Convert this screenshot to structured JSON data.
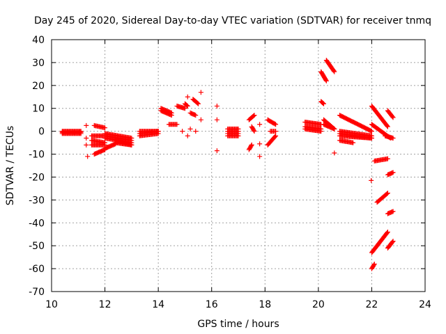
{
  "chart_data": {
    "type": "scatter",
    "title": "Day 245 of 2020, Sidereal Day-to-day VTEC variation (SDTVAR) for receiver tnmq",
    "xlabel": "GPS time / hours",
    "ylabel": "SDTVAR / TECUs",
    "xlim": [
      10,
      24
    ],
    "ylim": [
      -70,
      40
    ],
    "xticks": [
      10,
      12,
      14,
      16,
      18,
      20,
      22,
      24
    ],
    "yticks": [
      -70,
      -60,
      -50,
      -40,
      -30,
      -20,
      -10,
      0,
      10,
      20,
      30,
      40
    ],
    "grid": true,
    "marker": "+",
    "series_color": "#ff0000",
    "segments": [
      {
        "x": [
          10.4,
          11.1
        ],
        "y": [
          -1,
          -1
        ]
      },
      {
        "x": [
          10.4,
          11.1
        ],
        "y": [
          0,
          0
        ]
      },
      {
        "x": [
          10.4,
          11.1
        ],
        "y": [
          -0.5,
          -0.5
        ]
      },
      {
        "x": [
          11.5,
          12.0
        ],
        "y": [
          -4,
          -5
        ]
      },
      {
        "x": [
          11.5,
          12.0
        ],
        "y": [
          -2,
          -2
        ]
      },
      {
        "x": [
          11.5,
          12.0
        ],
        "y": [
          -6,
          -6
        ]
      },
      {
        "x": [
          11.6,
          12.0
        ],
        "y": [
          2.5,
          1.5
        ]
      },
      {
        "x": [
          11.6,
          12.0
        ],
        "y": [
          -10,
          -8
        ]
      },
      {
        "x": [
          12.0,
          12.4
        ],
        "y": [
          -7.5,
          -5.5
        ]
      },
      {
        "x": [
          12.0,
          13.0
        ],
        "y": [
          -1,
          -3
        ]
      },
      {
        "x": [
          12.0,
          13.0
        ],
        "y": [
          -2,
          -4
        ]
      },
      {
        "x": [
          12.0,
          13.0
        ],
        "y": [
          -3,
          -5
        ]
      },
      {
        "x": [
          12.4,
          13.0
        ],
        "y": [
          -4,
          -6
        ]
      },
      {
        "x": [
          12.4,
          13.0
        ],
        "y": [
          -5,
          -6
        ]
      },
      {
        "x": [
          13.3,
          14.0
        ],
        "y": [
          -2,
          -1
        ]
      },
      {
        "x": [
          13.3,
          14.0
        ],
        "y": [
          -1,
          0
        ]
      },
      {
        "x": [
          13.3,
          14.0
        ],
        "y": [
          0,
          0
        ]
      },
      {
        "x": [
          14.1,
          14.5
        ],
        "y": [
          10,
          8
        ]
      },
      {
        "x": [
          14.1,
          14.5
        ],
        "y": [
          9,
          7
        ]
      },
      {
        "x": [
          14.4,
          14.7
        ],
        "y": [
          3,
          3
        ]
      },
      {
        "x": [
          14.7,
          15.0
        ],
        "y": [
          11,
          10
        ]
      },
      {
        "x": [
          15.0,
          15.1
        ],
        "y": [
          12,
          11
        ]
      },
      {
        "x": [
          15.2,
          15.4
        ],
        "y": [
          8,
          7
        ]
      },
      {
        "x": [
          15.3,
          15.5
        ],
        "y": [
          14,
          12
        ]
      },
      {
        "x": [
          16.6,
          17.0
        ],
        "y": [
          1,
          1
        ]
      },
      {
        "x": [
          16.6,
          17.0
        ],
        "y": [
          0,
          0
        ]
      },
      {
        "x": [
          16.6,
          17.0
        ],
        "y": [
          -1,
          -1
        ]
      },
      {
        "x": [
          16.6,
          17.0
        ],
        "y": [
          -2,
          -2
        ]
      },
      {
        "x": [
          17.4,
          17.5
        ],
        "y": [
          -8,
          -6
        ]
      },
      {
        "x": [
          17.4,
          17.6
        ],
        "y": [
          5,
          7
        ]
      },
      {
        "x": [
          17.5,
          17.6
        ],
        "y": [
          2,
          0
        ]
      },
      {
        "x": [
          18.1,
          18.4
        ],
        "y": [
          -6,
          -2
        ]
      },
      {
        "x": [
          18.1,
          18.4
        ],
        "y": [
          5,
          3
        ]
      },
      {
        "x": [
          18.2,
          18.4
        ],
        "y": [
          0,
          0
        ]
      },
      {
        "x": [
          19.5,
          20.1
        ],
        "y": [
          4,
          3
        ]
      },
      {
        "x": [
          19.5,
          20.1
        ],
        "y": [
          1,
          0
        ]
      },
      {
        "x": [
          19.5,
          20.1
        ],
        "y": [
          2,
          1
        ]
      },
      {
        "x": [
          20.1,
          20.3
        ],
        "y": [
          26,
          22
        ]
      },
      {
        "x": [
          20.3,
          20.6
        ],
        "y": [
          31,
          26
        ]
      },
      {
        "x": [
          20.1,
          20.2
        ],
        "y": [
          13,
          12
        ]
      },
      {
        "x": [
          20.2,
          20.6
        ],
        "y": [
          5,
          1
        ]
      },
      {
        "x": [
          20.2,
          20.6
        ],
        "y": [
          3,
          1
        ]
      },
      {
        "x": [
          20.8,
          22.0
        ],
        "y": [
          7,
          0
        ]
      },
      {
        "x": [
          20.8,
          22.0
        ],
        "y": [
          0,
          -2
        ]
      },
      {
        "x": [
          20.8,
          22.0
        ],
        "y": [
          -1,
          -3
        ]
      },
      {
        "x": [
          20.8,
          22.0
        ],
        "y": [
          -2,
          -3
        ]
      },
      {
        "x": [
          20.8,
          21.3
        ],
        "y": [
          -4,
          -5
        ]
      },
      {
        "x": [
          22.0,
          22.6
        ],
        "y": [
          11,
          2
        ]
      },
      {
        "x": [
          22.0,
          22.7
        ],
        "y": [
          3,
          -3
        ]
      },
      {
        "x": [
          22.6,
          22.8
        ],
        "y": [
          9,
          6
        ]
      },
      {
        "x": [
          22.5,
          22.8
        ],
        "y": [
          -2,
          -3
        ]
      },
      {
        "x": [
          22.1,
          22.6
        ],
        "y": [
          -13,
          -12
        ]
      },
      {
        "x": [
          22.2,
          22.6
        ],
        "y": [
          -31,
          -27
        ]
      },
      {
        "x": [
          22.0,
          22.6
        ],
        "y": [
          -53,
          -44
        ]
      },
      {
        "x": [
          22.0,
          22.1
        ],
        "y": [
          -60,
          -58
        ]
      },
      {
        "x": [
          22.6,
          22.8
        ],
        "y": [
          -19,
          -18
        ]
      },
      {
        "x": [
          22.6,
          22.8
        ],
        "y": [
          -36,
          -35
        ]
      },
      {
        "x": [
          22.6,
          22.8
        ],
        "y": [
          -51,
          -48
        ]
      }
    ],
    "isolated_points": [
      {
        "x": 11.3,
        "y": 2.5
      },
      {
        "x": 11.3,
        "y": -3
      },
      {
        "x": 11.3,
        "y": -6
      },
      {
        "x": 11.35,
        "y": -11
      },
      {
        "x": 14.9,
        "y": 0
      },
      {
        "x": 15.1,
        "y": 15
      },
      {
        "x": 15.1,
        "y": -2
      },
      {
        "x": 15.2,
        "y": 1
      },
      {
        "x": 15.4,
        "y": 0
      },
      {
        "x": 15.6,
        "y": 17
      },
      {
        "x": 15.6,
        "y": 5
      },
      {
        "x": 16.2,
        "y": 11
      },
      {
        "x": 16.2,
        "y": 5
      },
      {
        "x": 16.2,
        "y": -8.5
      },
      {
        "x": 17.5,
        "y": -6
      },
      {
        "x": 17.8,
        "y": 3
      },
      {
        "x": 17.8,
        "y": -5.5
      },
      {
        "x": 17.8,
        "y": -11
      },
      {
        "x": 20.6,
        "y": -9.5
      },
      {
        "x": 21.98,
        "y": -21.5
      }
    ]
  }
}
